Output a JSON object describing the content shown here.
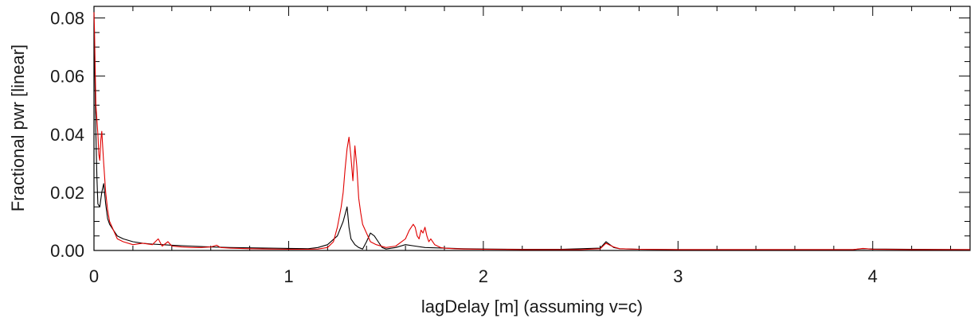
{
  "chart_data": {
    "type": "line",
    "xlabel": "lagDelay [m] (assuming v=c)",
    "ylabel": "Fractional pwr [linear]",
    "xlim": [
      0,
      4.5
    ],
    "ylim": [
      0,
      0.084
    ],
    "x_ticks": [
      0,
      1,
      2,
      3,
      4
    ],
    "x_tick_labels": [
      "0",
      "1",
      "2",
      "3",
      "4"
    ],
    "y_ticks": [
      0,
      0.02,
      0.04,
      0.06,
      0.08
    ],
    "y_tick_labels": [
      "0.00",
      "0.02",
      "0.04",
      "0.06",
      "0.08"
    ],
    "grid": false,
    "series": [
      {
        "color": "#000000",
        "x": [
          0,
          0.005,
          0.01,
          0.015,
          0.02,
          0.03,
          0.04,
          0.05,
          0.06,
          0.07,
          0.08,
          0.1,
          0.12,
          0.15,
          0.2,
          0.25,
          0.3,
          0.35,
          0.4,
          0.5,
          0.6,
          0.7,
          0.8,
          0.9,
          1.0,
          1.1,
          1.15,
          1.2,
          1.25,
          1.28,
          1.3,
          1.31,
          1.32,
          1.34,
          1.36,
          1.38,
          1.4,
          1.42,
          1.44,
          1.46,
          1.48,
          1.5,
          1.55,
          1.6,
          1.65,
          1.7,
          1.8,
          1.9,
          2.0,
          2.2,
          2.4,
          2.6,
          2.63,
          2.65,
          2.67,
          2.7,
          2.8,
          3.0,
          3.5,
          3.9,
          3.95,
          4.0,
          4.2,
          4.5
        ],
        "y": [
          0.07,
          0.06,
          0.04,
          0.025,
          0.016,
          0.015,
          0.02,
          0.023,
          0.016,
          0.011,
          0.009,
          0.007,
          0.005,
          0.004,
          0.003,
          0.0025,
          0.0022,
          0.002,
          0.0018,
          0.0015,
          0.0012,
          0.001,
          0.0009,
          0.0008,
          0.0007,
          0.0006,
          0.001,
          0.002,
          0.005,
          0.01,
          0.015,
          0.008,
          0.004,
          0.002,
          0.001,
          0.0005,
          0.003,
          0.006,
          0.005,
          0.003,
          0.001,
          0.0005,
          0.001,
          0.002,
          0.0015,
          0.001,
          0.0008,
          0.0006,
          0.0005,
          0.0004,
          0.0004,
          0.0008,
          0.003,
          0.002,
          0.001,
          0.0006,
          0.0004,
          0.0003,
          0.0003,
          0.0003,
          0.0006,
          0.0005,
          0.0004,
          0.0003
        ]
      },
      {
        "color": "#e00000",
        "x": [
          0,
          0.003,
          0.007,
          0.01,
          0.015,
          0.02,
          0.025,
          0.03,
          0.035,
          0.04,
          0.05,
          0.06,
          0.07,
          0.08,
          0.1,
          0.12,
          0.15,
          0.2,
          0.25,
          0.3,
          0.33,
          0.35,
          0.38,
          0.4,
          0.45,
          0.5,
          0.55,
          0.6,
          0.63,
          0.65,
          0.7,
          0.8,
          0.9,
          1.0,
          1.1,
          1.15,
          1.2,
          1.23,
          1.25,
          1.27,
          1.28,
          1.29,
          1.3,
          1.31,
          1.32,
          1.33,
          1.34,
          1.35,
          1.36,
          1.37,
          1.38,
          1.4,
          1.42,
          1.45,
          1.5,
          1.55,
          1.6,
          1.62,
          1.64,
          1.65,
          1.66,
          1.67,
          1.68,
          1.69,
          1.7,
          1.71,
          1.72,
          1.73,
          1.75,
          1.78,
          1.8,
          1.85,
          1.9,
          2.0,
          2.2,
          2.4,
          2.5,
          2.6,
          2.63,
          2.65,
          2.67,
          2.7,
          2.8,
          3.0,
          3.5,
          3.9,
          3.95,
          4.0,
          4.2,
          4.5
        ],
        "y": [
          0.082,
          0.075,
          0.06,
          0.05,
          0.045,
          0.04,
          0.033,
          0.031,
          0.038,
          0.041,
          0.03,
          0.02,
          0.014,
          0.01,
          0.007,
          0.004,
          0.003,
          0.002,
          0.0025,
          0.002,
          0.004,
          0.0015,
          0.003,
          0.0015,
          0.0012,
          0.001,
          0.001,
          0.0012,
          0.0018,
          0.001,
          0.0008,
          0.0006,
          0.0005,
          0.0004,
          0.0004,
          0.0005,
          0.001,
          0.003,
          0.008,
          0.015,
          0.02,
          0.028,
          0.035,
          0.039,
          0.032,
          0.024,
          0.036,
          0.029,
          0.018,
          0.013,
          0.009,
          0.006,
          0.003,
          0.002,
          0.001,
          0.0015,
          0.004,
          0.007,
          0.009,
          0.008,
          0.005,
          0.004,
          0.007,
          0.006,
          0.008,
          0.005,
          0.003,
          0.004,
          0.002,
          0.001,
          0.0008,
          0.0006,
          0.0005,
          0.0004,
          0.0003,
          0.0003,
          0.0003,
          0.0006,
          0.0025,
          0.0018,
          0.0012,
          0.0006,
          0.0004,
          0.0003,
          0.0003,
          0.0003,
          0.0007,
          0.0004,
          0.0003,
          0.0003
        ]
      }
    ]
  }
}
